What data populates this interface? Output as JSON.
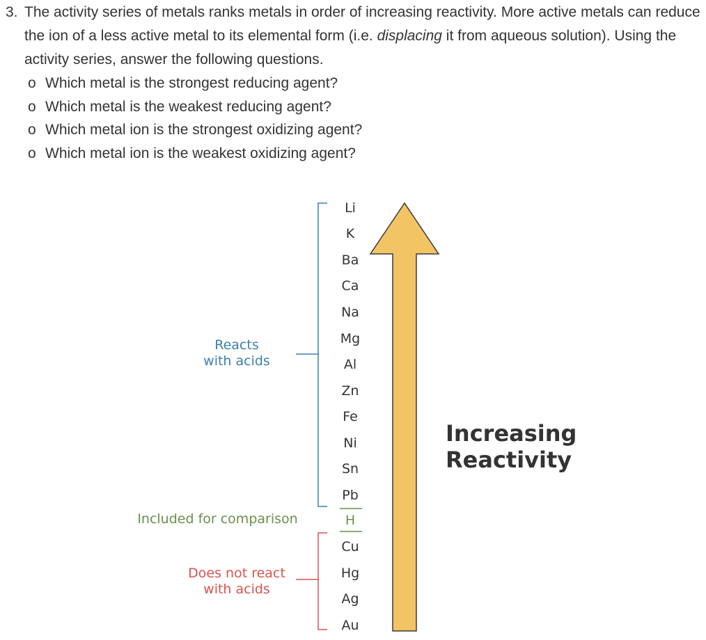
{
  "question": {
    "number": "3.",
    "intro_before": "The activity series of metals ranks metals in order of increasing reactivity. More active metals can reduce the ion of a less active metal to its elemental form (i.e. ",
    "intro_emph": "displacing",
    "intro_after": " it from aqueous solution). Using the activity series, answer the following questions.",
    "bullet_marker": "o",
    "bullets": [
      "Which metal is the strongest reducing agent?",
      "Which metal is the weakest reducing agent?",
      "Which metal ion is the strongest oxidizing agent?",
      "Which metal ion is the weakest oxidizing agent?"
    ]
  },
  "figure": {
    "metals": [
      "Li",
      "K",
      "Ba",
      "Ca",
      "Na",
      "Mg",
      "Al",
      "Zn",
      "Fe",
      "Ni",
      "Sn",
      "Pb",
      "H",
      "Cu",
      "Hg",
      "Ag",
      "Au"
    ],
    "labels": {
      "reacts_line1": "Reacts",
      "reacts_line2": "with acids",
      "comparison": "Included for comparison",
      "noreact_line1": "Does not react",
      "noreact_line2": "with acids"
    },
    "arrow_label_line1": "Increasing",
    "arrow_label_line2": "Reactivity",
    "colors": {
      "reacts": "#3c7fb1",
      "comparison": "#6b8e4e",
      "noreact": "#d9534f",
      "arrow_fill": "#f2c464",
      "arrow_stroke": "#3a3a3a",
      "text": "#333333"
    }
  }
}
